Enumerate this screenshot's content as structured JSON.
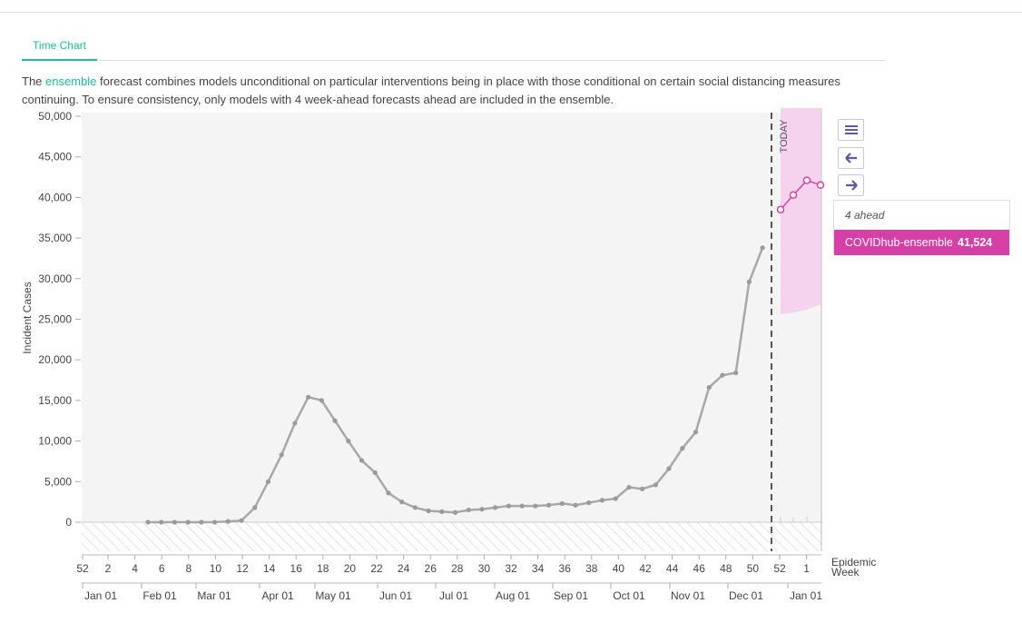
{
  "tab": {
    "label": "Time Chart"
  },
  "description": {
    "before": "The ",
    "link": "ensemble",
    "after": " forecast combines models unconditional on particular interventions being in place with those conditional on certain social distancing measures continuing. To ensure consistency, only models with 4 week-ahead forecasts ahead are included in the ensemble."
  },
  "tooltip": {
    "title": "4 ahead",
    "series": "COVIDhub-ensemble",
    "value": "41,524"
  },
  "colors": {
    "actual": "#a8a8a8",
    "forecast": "#d63fa5",
    "band": "#f5d3ee",
    "accent": "#1abc9c"
  },
  "controls": [
    "menu-icon",
    "arrow-left-icon",
    "arrow-right-icon"
  ],
  "chart_data": {
    "type": "line",
    "ylabel": "Incident Cases",
    "xlabel": "Epidemic Week",
    "today_label": "TODAY",
    "ylim": [
      0,
      50000
    ],
    "yticks": [
      0,
      5000,
      10000,
      15000,
      20000,
      25000,
      30000,
      35000,
      40000,
      45000,
      50000
    ],
    "ytick_labels": [
      "0",
      "5,000",
      "10,000",
      "15,000",
      "20,000",
      "25,000",
      "30,000",
      "35,000",
      "40,000",
      "45,000",
      "50,000"
    ],
    "week_tick_labels": [
      "52",
      "2",
      "4",
      "6",
      "8",
      "10",
      "12",
      "14",
      "16",
      "18",
      "20",
      "22",
      "24",
      "26",
      "28",
      "30",
      "32",
      "34",
      "36",
      "38",
      "40",
      "42",
      "44",
      "46",
      "48",
      "50",
      "52",
      "1"
    ],
    "month_tick_labels": [
      "Jan 01",
      "Feb 01",
      "Mar 01",
      "Apr 01",
      "May 01",
      "Jun 01",
      "Jul 01",
      "Aug 01",
      "Sep 01",
      "Oct 01",
      "Nov 01",
      "Dec 01",
      "Jan 01"
    ],
    "series": [
      {
        "name": "actual",
        "x": [
          5,
          6,
          7,
          8,
          9,
          10,
          11,
          12,
          13,
          14,
          15,
          16,
          17,
          18,
          19,
          20,
          21,
          22,
          23,
          24,
          25,
          26,
          27,
          28,
          29,
          30,
          31,
          32,
          33,
          34,
          35,
          36,
          37,
          38,
          39,
          40,
          41,
          42,
          43,
          44,
          45,
          46,
          47,
          48,
          49,
          50,
          51
        ],
        "values": [
          0,
          0,
          0,
          0,
          0,
          0,
          100,
          200,
          1800,
          5000,
          8300,
          12200,
          15400,
          15000,
          12500,
          10000,
          7600,
          6100,
          3600,
          2500,
          1800,
          1400,
          1300,
          1200,
          1500,
          1600,
          1800,
          2000,
          2000,
          2000,
          2100,
          2300,
          2100,
          2400,
          2700,
          2900,
          4300,
          4100,
          4600,
          6600,
          9100,
          11100,
          16600,
          18100,
          18400,
          29600,
          33800
        ]
      },
      {
        "name": "COVIDhub-ensemble",
        "x": [
          52,
          53,
          54,
          55
        ],
        "values": [
          38500,
          40300,
          42100,
          41524
        ],
        "upper": [
          50000,
          50000,
          50000,
          50000
        ],
        "lower": [
          25600,
          25800,
          26200,
          26800
        ]
      }
    ],
    "today_week": 51.4,
    "grid": false
  }
}
